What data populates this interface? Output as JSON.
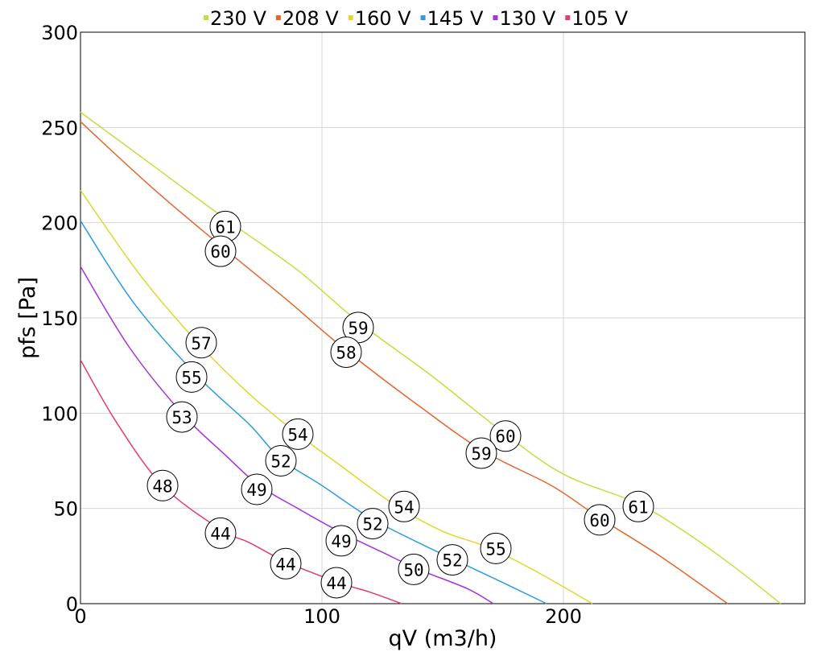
{
  "chart_data": {
    "type": "line",
    "xlabel": "qV (m3/h)",
    "ylabel": "pfs [Pa]",
    "xlim": [
      0,
      300
    ],
    "ylim": [
      0,
      300
    ],
    "x_ticks": [
      0,
      100,
      200
    ],
    "y_ticks": [
      0,
      50,
      100,
      150,
      200,
      250,
      300
    ],
    "grid": true,
    "legend_position": "top",
    "series": [
      {
        "name": "230 V",
        "color": "#c8dc3c",
        "points": [
          [
            0,
            258
          ],
          [
            30,
            230
          ],
          [
            60,
            202
          ],
          [
            90,
            175
          ],
          [
            115,
            148
          ],
          [
            145,
            120
          ],
          [
            175,
            90
          ],
          [
            200,
            68
          ],
          [
            230,
            53
          ],
          [
            250,
            38
          ],
          [
            270,
            20
          ],
          [
            290,
            0
          ]
        ],
        "markers": [
          {
            "x": 60,
            "y": 198,
            "label": "61"
          },
          {
            "x": 115,
            "y": 145,
            "label": "59"
          },
          {
            "x": 176,
            "y": 88,
            "label": "60"
          },
          {
            "x": 231,
            "y": 51,
            "label": "61"
          }
        ]
      },
      {
        "name": "208 V",
        "color": "#e8642c",
        "points": [
          [
            0,
            253
          ],
          [
            30,
            218
          ],
          [
            58,
            188
          ],
          [
            85,
            160
          ],
          [
            110,
            133
          ],
          [
            140,
            104
          ],
          [
            167,
            80
          ],
          [
            195,
            62
          ],
          [
            215,
            45
          ],
          [
            240,
            25
          ],
          [
            268,
            0
          ]
        ],
        "markers": [
          {
            "x": 58,
            "y": 185,
            "label": "60"
          },
          {
            "x": 110,
            "y": 132,
            "label": "58"
          },
          {
            "x": 166,
            "y": 79,
            "label": "59"
          },
          {
            "x": 215,
            "y": 44,
            "label": "60"
          }
        ]
      },
      {
        "name": "160 V",
        "color": "#e2d62c",
        "points": [
          [
            0,
            217
          ],
          [
            25,
            172
          ],
          [
            50,
            135
          ],
          [
            70,
            110
          ],
          [
            90,
            89
          ],
          [
            105,
            75
          ],
          [
            130,
            52
          ],
          [
            150,
            38
          ],
          [
            170,
            29
          ],
          [
            190,
            16
          ],
          [
            212,
            0
          ]
        ],
        "markers": [
          {
            "x": 50,
            "y": 137,
            "label": "57"
          },
          {
            "x": 90,
            "y": 89,
            "label": "54"
          },
          {
            "x": 134,
            "y": 51,
            "label": "54"
          },
          {
            "x": 172,
            "y": 29,
            "label": "55"
          }
        ]
      },
      {
        "name": "145 V",
        "color": "#2c9ce6",
        "points": [
          [
            0,
            201
          ],
          [
            22,
            158
          ],
          [
            48,
            120
          ],
          [
            70,
            94
          ],
          [
            83,
            76
          ],
          [
            100,
            62
          ],
          [
            120,
            45
          ],
          [
            140,
            32
          ],
          [
            155,
            23
          ],
          [
            175,
            11
          ],
          [
            193,
            0
          ]
        ],
        "markers": [
          {
            "x": 46,
            "y": 119,
            "label": "55"
          },
          {
            "x": 83,
            "y": 75,
            "label": "52"
          },
          {
            "x": 121,
            "y": 42,
            "label": "52"
          },
          {
            "x": 154,
            "y": 23,
            "label": "52"
          }
        ]
      },
      {
        "name": "130 V",
        "color": "#a830e0",
        "points": [
          [
            0,
            177
          ],
          [
            20,
            135
          ],
          [
            42,
            100
          ],
          [
            60,
            78
          ],
          [
            74,
            62
          ],
          [
            90,
            50
          ],
          [
            107,
            38
          ],
          [
            125,
            27
          ],
          [
            140,
            18
          ],
          [
            160,
            8
          ],
          [
            171,
            0
          ]
        ],
        "markers": [
          {
            "x": 42,
            "y": 98,
            "label": "53"
          },
          {
            "x": 73,
            "y": 60,
            "label": "49"
          },
          {
            "x": 108,
            "y": 33,
            "label": "49"
          },
          {
            "x": 138,
            "y": 18,
            "label": "50"
          }
        ]
      },
      {
        "name": "105 V",
        "color": "#e83a6c",
        "points": [
          [
            0,
            128
          ],
          [
            15,
            95
          ],
          [
            34,
            62
          ],
          [
            58,
            39
          ],
          [
            70,
            32
          ],
          [
            85,
            22
          ],
          [
            107,
            11
          ],
          [
            120,
            6
          ],
          [
            133,
            0
          ]
        ],
        "markers": [
          {
            "x": 34,
            "y": 62,
            "label": "48"
          },
          {
            "x": 58,
            "y": 37,
            "label": "44"
          },
          {
            "x": 85,
            "y": 21,
            "label": "44"
          },
          {
            "x": 106,
            "y": 11,
            "label": "44"
          }
        ]
      }
    ]
  }
}
